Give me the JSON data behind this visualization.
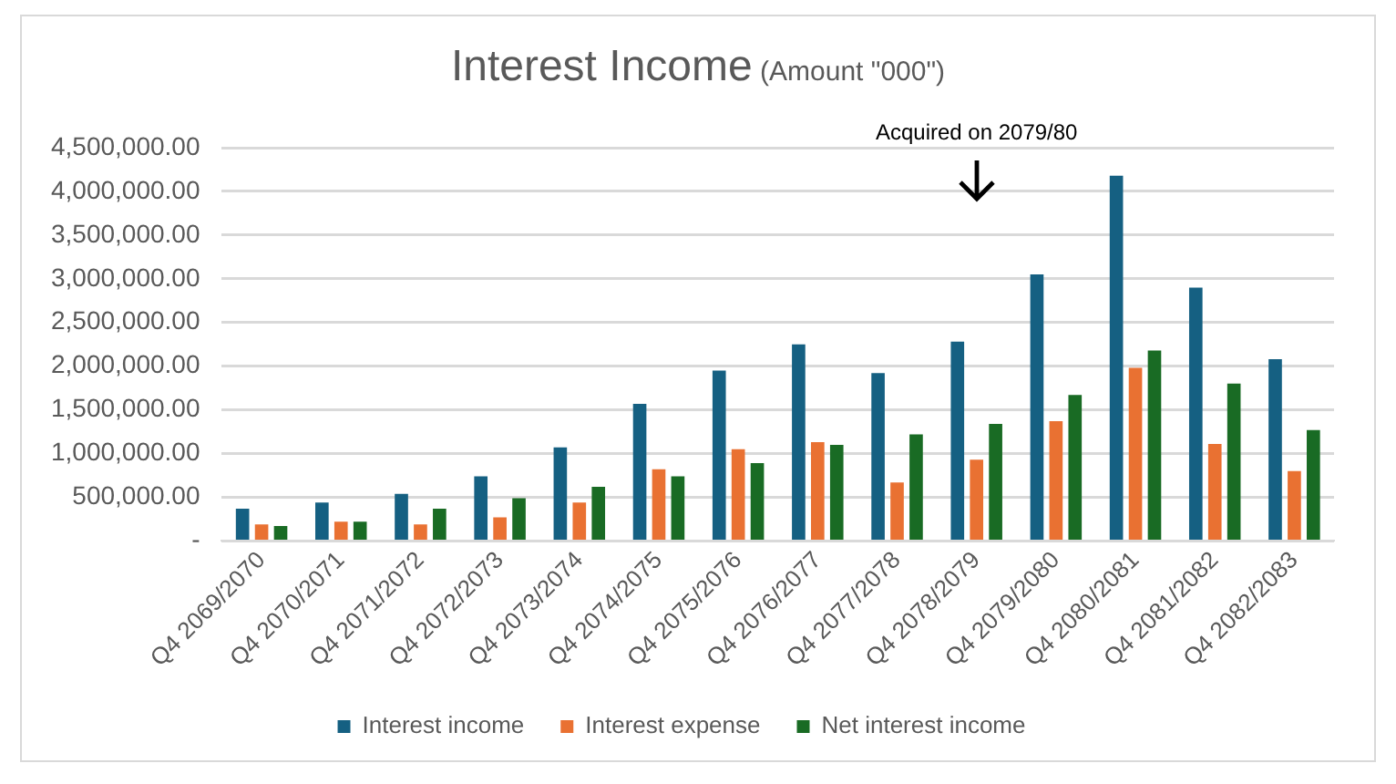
{
  "chart_data": {
    "type": "bar",
    "title": "Interest Income",
    "subtitle": "(Amount \"000\")",
    "categories": [
      "Q4 2069/2070",
      "Q4 2070/2071",
      "Q4 2071/2072",
      "Q4 2072/2073",
      "Q4 2073/2074",
      "Q4 2074/2075",
      "Q4 2075/2076",
      "Q4 2076/2077",
      "Q4 2077/2078",
      "Q4 2078/2079",
      "Q4 2079/2080",
      "Q4 2080/2081",
      "Q4 2081/2082",
      "Q4 2082/2083"
    ],
    "series": [
      {
        "name": "Interest income",
        "color": "#156082",
        "values": [
          370000,
          440000,
          540000,
          740000,
          1070000,
          1570000,
          1950000,
          2250000,
          1920000,
          2280000,
          3050000,
          4180000,
          2900000,
          2080000
        ]
      },
      {
        "name": "Interest expense",
        "color": "#e97132",
        "values": [
          190000,
          220000,
          190000,
          270000,
          440000,
          820000,
          1050000,
          1130000,
          670000,
          930000,
          1370000,
          1980000,
          1110000,
          800000
        ]
      },
      {
        "name": "Net interest income",
        "color": "#196b24",
        "values": [
          170000,
          220000,
          370000,
          490000,
          620000,
          740000,
          890000,
          1100000,
          1220000,
          1340000,
          1670000,
          2180000,
          1800000,
          1270000
        ]
      }
    ],
    "ylim": [
      0,
      4500000
    ],
    "yticks": [
      {
        "value": 0,
        "label": "-"
      },
      {
        "value": 500000,
        "label": "500,000.00"
      },
      {
        "value": 1000000,
        "label": "1,000,000.00"
      },
      {
        "value": 1500000,
        "label": "1,500,000.00"
      },
      {
        "value": 2000000,
        "label": "2,000,000.00"
      },
      {
        "value": 2500000,
        "label": "2,500,000.00"
      },
      {
        "value": 3000000,
        "label": "3,000,000.00"
      },
      {
        "value": 3500000,
        "label": "3,500,000.00"
      },
      {
        "value": 4000000,
        "label": "4,000,000.00"
      },
      {
        "value": 4500000,
        "label": "4,500,000.00"
      }
    ],
    "grid": "y",
    "legend": "bottom",
    "annotations": [
      {
        "text": "Acquired on 2079/80",
        "x": "Q4 2078/2079"
      }
    ]
  }
}
